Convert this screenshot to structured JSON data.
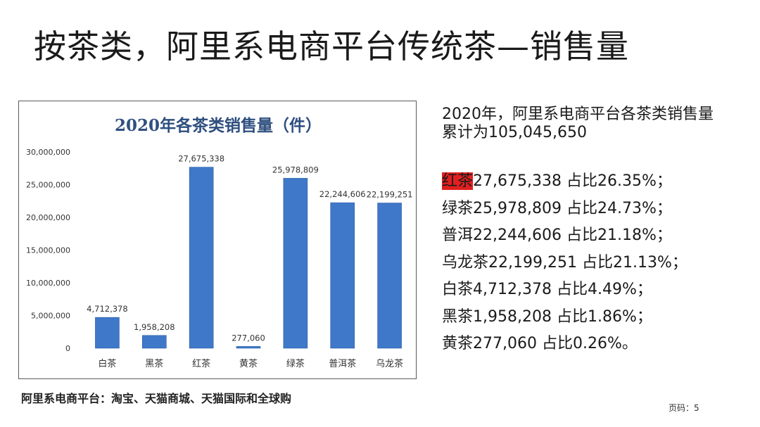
{
  "slide": {
    "title": "按茶类，阿里系电商平台传统茶—销售量",
    "caption": "阿里系电商平台：淘宝、天猫商城、天猫国际和全球购",
    "page_label": "页码：5"
  },
  "summary": {
    "line1": "2020年，阿里系电商平台各茶类销售量",
    "line2": "累计为105,045,650"
  },
  "breakdown": [
    {
      "name": "红茶",
      "rest": "27,675,338 占比26.35%；",
      "highlight": true
    },
    {
      "name": "绿茶",
      "rest": "25,978,809 占比24.73%；",
      "highlight": false
    },
    {
      "name": "普洱",
      "rest": "22,244,606 占比21.18%；",
      "highlight": false
    },
    {
      "name": "乌龙茶",
      "rest": "22,199,251 占比21.13%；",
      "highlight": false
    },
    {
      "name": "白茶",
      "rest": "4,712,378 占比4.49%；",
      "highlight": false
    },
    {
      "name": "黑茶",
      "rest": "1,958,208 占比1.86%；",
      "highlight": false
    },
    {
      "name": "黄茶",
      "rest": "277,060  占比0.26%。",
      "highlight": false
    }
  ],
  "colors": {
    "bar": "#3f78c8",
    "bar_dark": "#2a5ea8",
    "title": "#2f4f7f",
    "highlight": "#e02020"
  },
  "chart_data": {
    "type": "bar",
    "title": "2020年各茶类销售量（件）",
    "categories": [
      "白茶",
      "黑茶",
      "红茶",
      "黄茶",
      "绿茶",
      "普洱茶",
      "乌龙茶"
    ],
    "values": [
      4712378,
      1958208,
      27675338,
      277060,
      25978809,
      22244606,
      22199251
    ],
    "value_labels": [
      "4,712,378",
      "1,958,208",
      "27,675,338",
      "277,060",
      "25,978,809",
      "22,244,606",
      "22,199,251"
    ],
    "yticks": [
      0,
      5000000,
      10000000,
      15000000,
      20000000,
      25000000,
      30000000
    ],
    "ytick_labels": [
      "0",
      "5,000,000",
      "10,000,000",
      "15,000,000",
      "20,000,000",
      "25,000,000",
      "30,000,000"
    ],
    "ylim": [
      0,
      30000000
    ],
    "xlabel": "",
    "ylabel": "",
    "grid": false
  }
}
